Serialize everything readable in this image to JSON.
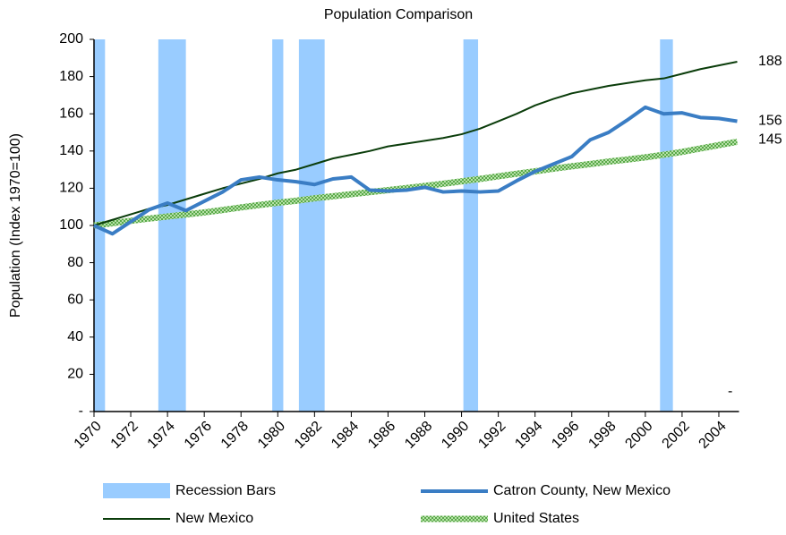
{
  "chart_data": {
    "type": "line",
    "title": "Population Comparison",
    "y_label": "Population (Index 1970=100)",
    "x": [
      1970,
      1971,
      1972,
      1973,
      1974,
      1975,
      1976,
      1977,
      1978,
      1979,
      1980,
      1981,
      1982,
      1983,
      1984,
      1985,
      1986,
      1987,
      1988,
      1989,
      1990,
      1991,
      1992,
      1993,
      1994,
      1995,
      1996,
      1997,
      1998,
      1999,
      2000,
      2001,
      2002,
      2003,
      2004,
      2005
    ],
    "xlim": [
      1970,
      2005
    ],
    "xticks": [
      1970,
      1972,
      1974,
      1976,
      1978,
      1980,
      1982,
      1984,
      1986,
      1988,
      1990,
      1992,
      1994,
      1996,
      1998,
      2000,
      2002,
      2004
    ],
    "ylim": [
      0,
      200
    ],
    "yticks": [
      {
        "value": 0,
        "label": "-"
      },
      20,
      40,
      60,
      80,
      100,
      120,
      140,
      160,
      180,
      200
    ],
    "recessions": {
      "name": "Recession Bars",
      "color": "#99ccff",
      "ranges": [
        [
          1970.0,
          1970.6
        ],
        [
          1973.5,
          1975.0
        ],
        [
          1979.7,
          1980.3
        ],
        [
          1981.15,
          1982.55
        ],
        [
          1990.1,
          1990.9
        ],
        [
          2000.8,
          2001.5
        ]
      ]
    },
    "series": [
      {
        "name": "Catron County, New Mexico",
        "color": "#3a7dc4",
        "width": 4,
        "style": "solid",
        "values": [
          100,
          95.5,
          102,
          108.5,
          112,
          108,
          113,
          118,
          124.5,
          126,
          124.5,
          123.5,
          122,
          125,
          126,
          119,
          118.5,
          119,
          120.5,
          118,
          118.5,
          118,
          118.5,
          124,
          129,
          133,
          137,
          146,
          150,
          156.5,
          163.5,
          160,
          160.5,
          158,
          157.5,
          156
        ]
      },
      {
        "name": "New Mexico",
        "color": "#0b3d0b",
        "width": 2,
        "style": "solid",
        "values": [
          100,
          103,
          106,
          109,
          111,
          114,
          117,
          120,
          122.5,
          125,
          128,
          130,
          133,
          136,
          138,
          140,
          142.5,
          144,
          145.5,
          147,
          149,
          152,
          156,
          160,
          164.5,
          168,
          171,
          173,
          175,
          176.5,
          178,
          179,
          181.5,
          184,
          186,
          188
        ]
      },
      {
        "name": "United States",
        "color": "#5aaa4a",
        "width": 7,
        "style": "hatched",
        "values": [
          100,
          101.2,
          102.5,
          103.7,
          104.8,
          105.9,
          107,
          108.3,
          109.7,
          111,
          112.2,
          113.3,
          114.6,
          115.7,
          116.8,
          117.9,
          119,
          120.1,
          121.2,
          122.4,
          123.7,
          125,
          126.4,
          127.8,
          129.1,
          130.5,
          131.8,
          133,
          134.3,
          135.4,
          136.6,
          138,
          139.5,
          141.4,
          143.2,
          145
        ]
      }
    ],
    "annotations": [
      "-"
    ]
  }
}
